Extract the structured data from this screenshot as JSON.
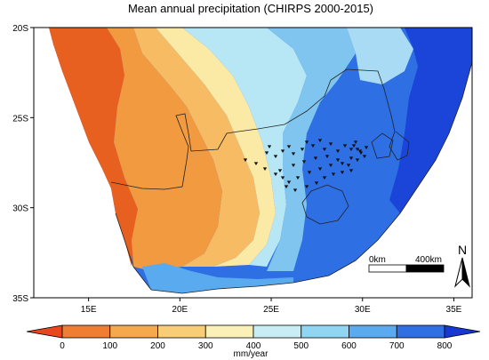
{
  "title": "Mean annual precipitation (CHIRPS 2000-2015)",
  "map": {
    "lat_ticks": [
      "20S",
      "25S",
      "30S",
      "35S"
    ],
    "lon_ticks": [
      "15E",
      "20E",
      "25E",
      "30E",
      "35E"
    ],
    "lon_range": [
      12,
      36
    ],
    "lat_range": [
      20,
      35
    ]
  },
  "colorbar": {
    "unit": "mm/year",
    "ticks": [
      "0",
      "100",
      "200",
      "300",
      "400",
      "500",
      "600",
      "700",
      "800"
    ],
    "colors": [
      "#e8471e",
      "#ef7d32",
      "#f5a84c",
      "#f9cd76",
      "#fbf1b8",
      "#c8edf5",
      "#90d6f2",
      "#5aaaf0",
      "#2e6fe4",
      "#1637d2"
    ]
  },
  "scalebar": {
    "left_label": "0km",
    "right_label": "400km"
  },
  "north_arrow": {
    "label": "N"
  }
}
